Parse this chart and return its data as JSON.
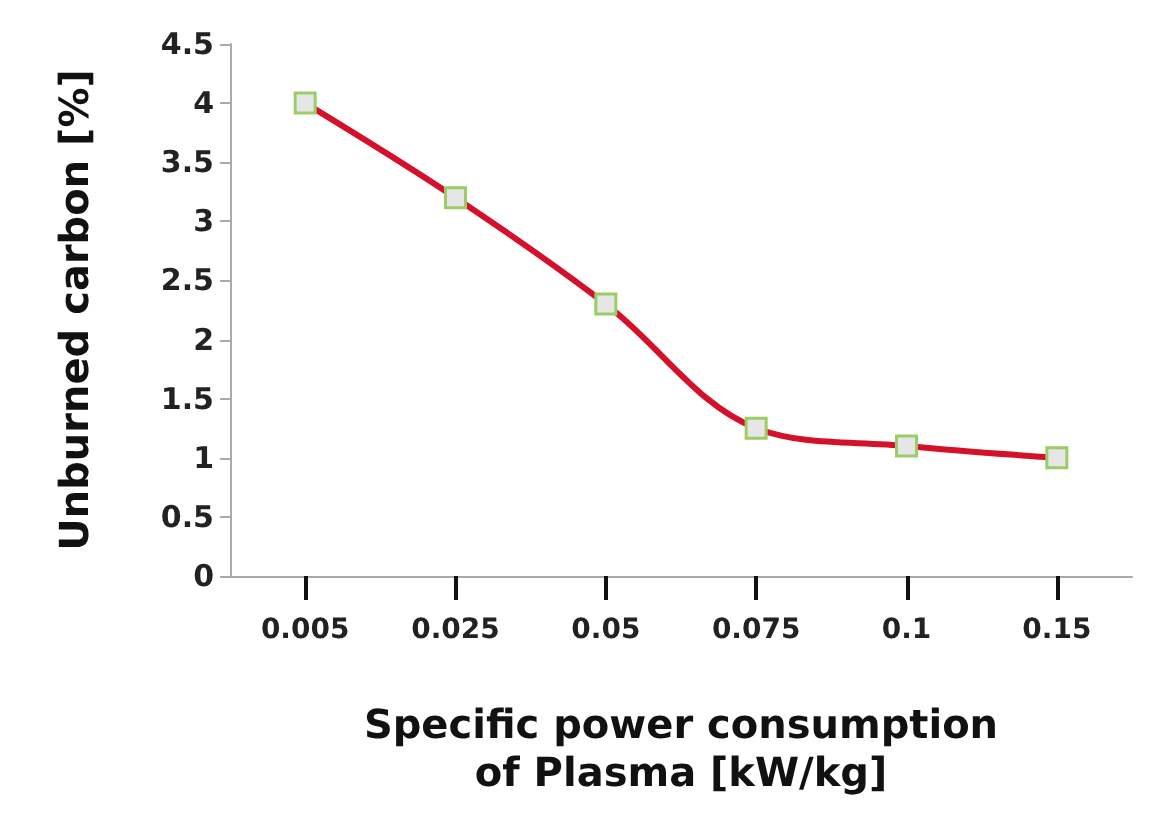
{
  "chart_data": {
    "type": "line",
    "xlabel": "Specific power consumption\nof Plasma [kW/kg]",
    "ylabel": "Unburned carbon [%]",
    "categories": [
      "0.005",
      "0.025",
      "0.05",
      "0.075",
      "0.1",
      "0.15"
    ],
    "series": [
      {
        "color": "#d4102a",
        "values": [
          4.0,
          3.2,
          2.3,
          1.25,
          1.1,
          1.0
        ]
      }
    ],
    "ylim": [
      0,
      4.5
    ],
    "yticks": [
      0,
      0.5,
      1,
      1.5,
      2,
      2.5,
      3,
      3.5,
      4,
      4.5
    ],
    "grid": false,
    "marker": "square",
    "line_style": "solid"
  }
}
